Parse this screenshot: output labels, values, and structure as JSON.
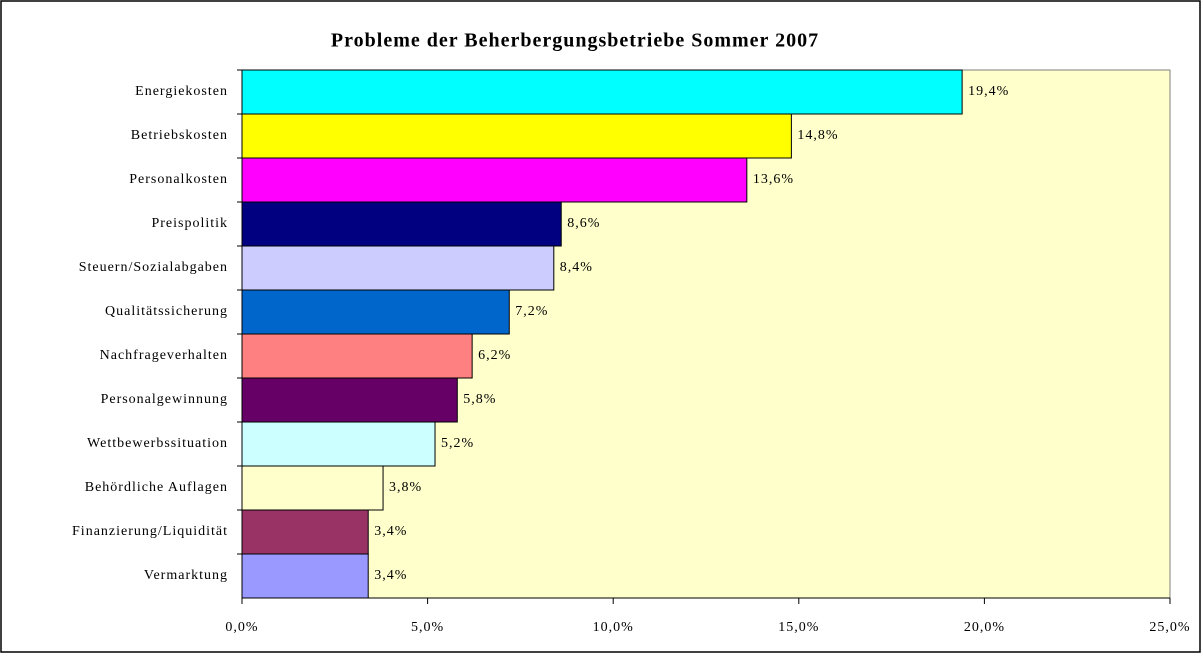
{
  "chart_data": {
    "type": "hbar",
    "title": "Probleme der Beherbergungsbetriebe Sommer 2007",
    "categories": [
      "Energiekosten",
      "Betriebskosten",
      "Personalkosten",
      "Preispolitik",
      "Steuern/Sozialabgaben",
      "Qualitätssicherung",
      "Nachfrageverhalten",
      "Personalgewinnung",
      "Wettbewerbssituation",
      "Behördliche Auflagen",
      "Finanzierung/Liquidität",
      "Vermarktung"
    ],
    "values": [
      19.4,
      14.8,
      13.6,
      8.6,
      8.4,
      7.2,
      6.2,
      5.8,
      5.2,
      3.8,
      3.4,
      3.4
    ],
    "value_labels": [
      "19,4%",
      "14,8%",
      "13,6%",
      "8,6%",
      "8,4%",
      "7,2%",
      "6,2%",
      "5,8%",
      "5,2%",
      "3,8%",
      "3,4%",
      "3,4%"
    ],
    "colors": [
      "#00ffff",
      "#ffff00",
      "#ff00ff",
      "#000080",
      "#ccccff",
      "#0066cc",
      "#ff8080",
      "#660066",
      "#ccffff",
      "#ffffcc",
      "#993366",
      "#9999ff"
    ],
    "xlim": [
      0,
      25
    ],
    "xticks": [
      {
        "value": 0,
        "label": "0,0%"
      },
      {
        "value": 5,
        "label": "5,0%"
      },
      {
        "value": 10,
        "label": "10,0%"
      },
      {
        "value": 15,
        "label": "15,0%"
      },
      {
        "value": 20,
        "label": "20,0%"
      },
      {
        "value": 25,
        "label": "25,0%"
      }
    ],
    "plot_background": "#ffffcc"
  }
}
